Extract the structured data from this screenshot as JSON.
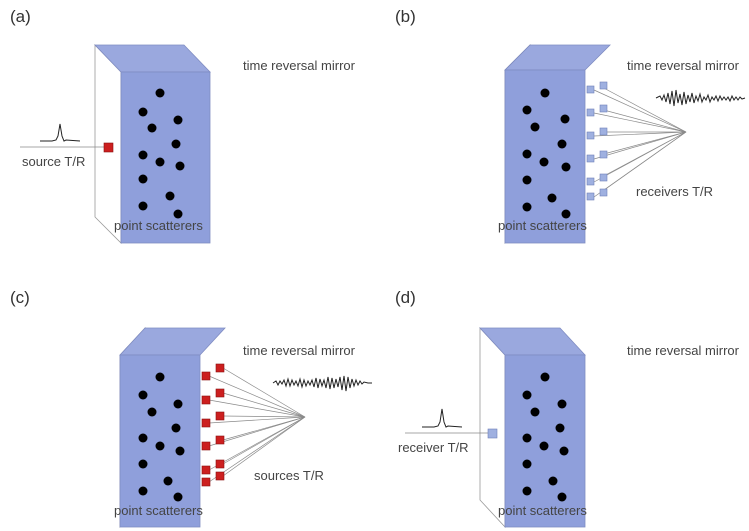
{
  "colors": {
    "slab_front": "#8f9fdb",
    "slab_top": "#9aa8de",
    "slab_side": "#ffffff",
    "scatterer": "#000000",
    "transducer_active": "#cc1f1f",
    "transducer_passive": "#9fb0e0",
    "line": "#8a8a8a"
  },
  "panels": [
    {
      "id": "a",
      "label": "(a)",
      "mirror_label": "time reversal mirror",
      "scatterers_label": "point scatterers",
      "transducer_label": "source T/R",
      "transducer_side": "left",
      "transducer_state": "active",
      "signal": "pulse"
    },
    {
      "id": "b",
      "label": "(b)",
      "mirror_label": "time reversal mirror",
      "scatterers_label": "point scatterers",
      "transducer_label": "receivers T/R",
      "transducer_side": "right-array",
      "transducer_state": "passive",
      "signal": "coda"
    },
    {
      "id": "c",
      "label": "(c)",
      "mirror_label": "time reversal mirror",
      "scatterers_label": "point scatterers",
      "transducer_label": "sources T/R",
      "transducer_side": "right-array",
      "transducer_state": "active",
      "signal": "reversed-coda"
    },
    {
      "id": "d",
      "label": "(d)",
      "mirror_label": "time reversal mirror",
      "scatterers_label": "point scatterers",
      "transducer_label": "receiver T/R",
      "transducer_side": "left",
      "transducer_state": "passive",
      "signal": "pulse"
    }
  ]
}
